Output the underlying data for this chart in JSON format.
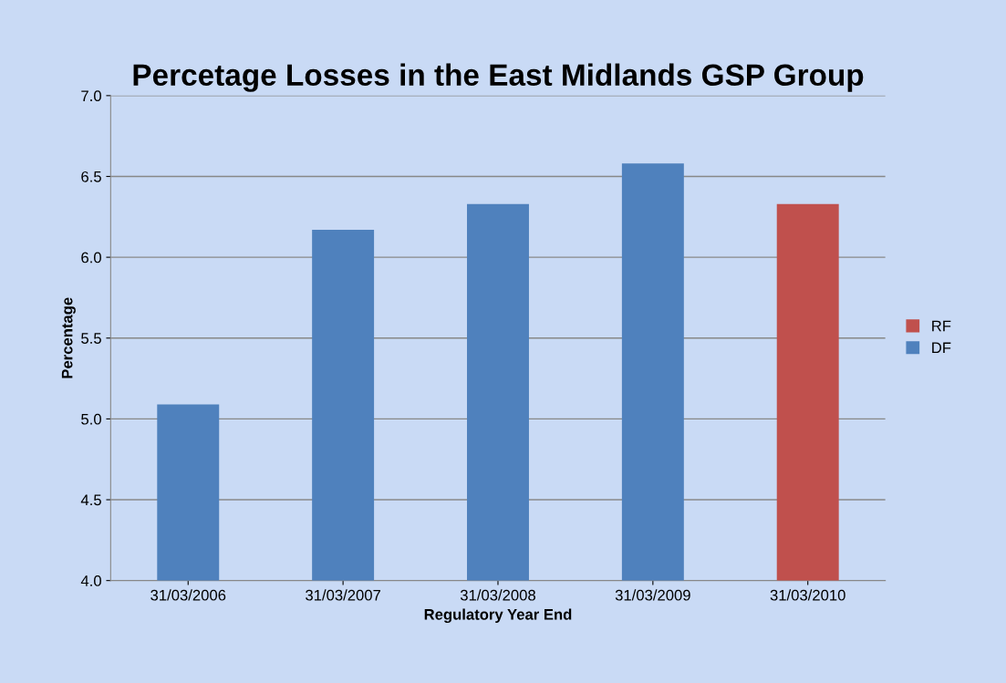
{
  "chart_data": {
    "type": "bar",
    "title": "Percetage Losses in the East Midlands GSP Group",
    "xlabel": "Regulatory Year End",
    "ylabel": "Percentage",
    "categories": [
      "31/03/2006",
      "31/03/2007",
      "31/03/2008",
      "31/03/2009",
      "31/03/2010"
    ],
    "series": [
      {
        "name": "RF",
        "color": "#c0504d",
        "values": [
          null,
          null,
          null,
          null,
          6.33
        ]
      },
      {
        "name": "DF",
        "color": "#4f81bd",
        "values": [
          5.09,
          6.17,
          6.33,
          6.58,
          null
        ]
      }
    ],
    "ylim": [
      4.0,
      7.0
    ],
    "yticks": [
      {
        "value": 4.0,
        "label": "4.0"
      },
      {
        "value": 4.5,
        "label": "4.5"
      },
      {
        "value": 5.0,
        "label": "5.0"
      },
      {
        "value": 5.5,
        "label": "5.5"
      },
      {
        "value": 6.0,
        "label": "6.0"
      },
      {
        "value": 6.5,
        "label": "6.5"
      },
      {
        "value": 7.0,
        "label": "7.0"
      }
    ],
    "grid": "y",
    "legend": "right"
  }
}
